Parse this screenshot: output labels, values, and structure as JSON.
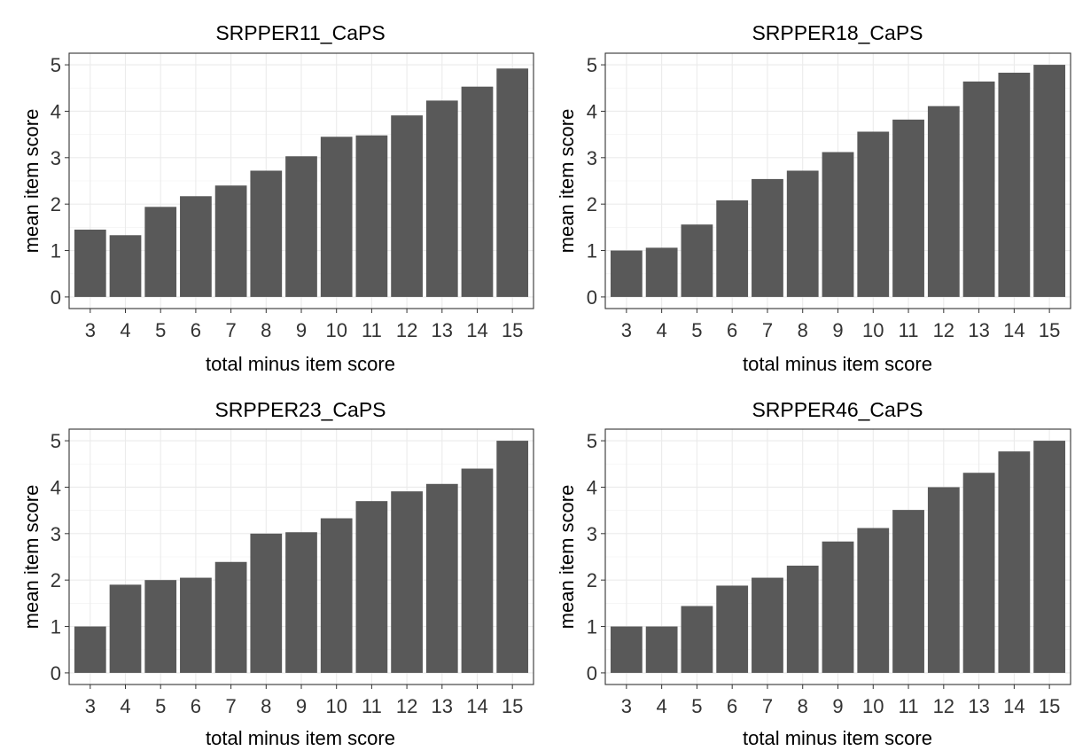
{
  "chart_data": [
    {
      "type": "bar",
      "title": "SRPPER11_CaPS",
      "xlabel": "total minus item score",
      "ylabel": "mean item score",
      "categories": [
        "3",
        "4",
        "5",
        "6",
        "7",
        "8",
        "9",
        "10",
        "11",
        "12",
        "13",
        "14",
        "15"
      ],
      "values": [
        1.45,
        1.33,
        1.94,
        2.17,
        2.4,
        2.72,
        3.03,
        3.45,
        3.48,
        3.91,
        4.23,
        4.53,
        4.92
      ],
      "ylim": [
        0,
        5
      ],
      "yticks": [
        "0",
        "1",
        "2",
        "3",
        "4",
        "5"
      ],
      "bar_color": "#595959",
      "grid": true
    },
    {
      "type": "bar",
      "title": "SRPPER18_CaPS",
      "xlabel": "total minus item score",
      "ylabel": "mean item score",
      "categories": [
        "3",
        "4",
        "5",
        "6",
        "7",
        "8",
        "9",
        "10",
        "11",
        "12",
        "13",
        "14",
        "15"
      ],
      "values": [
        1.0,
        1.06,
        1.56,
        2.08,
        2.54,
        2.72,
        3.12,
        3.56,
        3.82,
        4.11,
        4.64,
        4.83,
        5.0
      ],
      "ylim": [
        0,
        5
      ],
      "yticks": [
        "0",
        "1",
        "2",
        "3",
        "4",
        "5"
      ],
      "bar_color": "#595959",
      "grid": true
    },
    {
      "type": "bar",
      "title": "SRPPER23_CaPS",
      "xlabel": "total minus item score",
      "ylabel": "mean item score",
      "categories": [
        "3",
        "4",
        "5",
        "6",
        "7",
        "8",
        "9",
        "10",
        "11",
        "12",
        "13",
        "14",
        "15"
      ],
      "values": [
        1.0,
        1.9,
        2.0,
        2.05,
        2.39,
        3.0,
        3.03,
        3.33,
        3.7,
        3.91,
        4.07,
        4.4,
        5.0
      ],
      "ylim": [
        0,
        5
      ],
      "yticks": [
        "0",
        "1",
        "2",
        "3",
        "4",
        "5"
      ],
      "bar_color": "#595959",
      "grid": true
    },
    {
      "type": "bar",
      "title": "SRPPER46_CaPS",
      "xlabel": "total minus item score",
      "ylabel": "mean item score",
      "categories": [
        "3",
        "4",
        "5",
        "6",
        "7",
        "8",
        "9",
        "10",
        "11",
        "12",
        "13",
        "14",
        "15"
      ],
      "values": [
        1.0,
        1.0,
        1.44,
        1.88,
        2.05,
        2.31,
        2.83,
        3.12,
        3.51,
        4.0,
        4.31,
        4.77,
        5.0
      ],
      "ylim": [
        0,
        5
      ],
      "yticks": [
        "0",
        "1",
        "2",
        "3",
        "4",
        "5"
      ],
      "bar_color": "#595959",
      "grid": true
    }
  ]
}
